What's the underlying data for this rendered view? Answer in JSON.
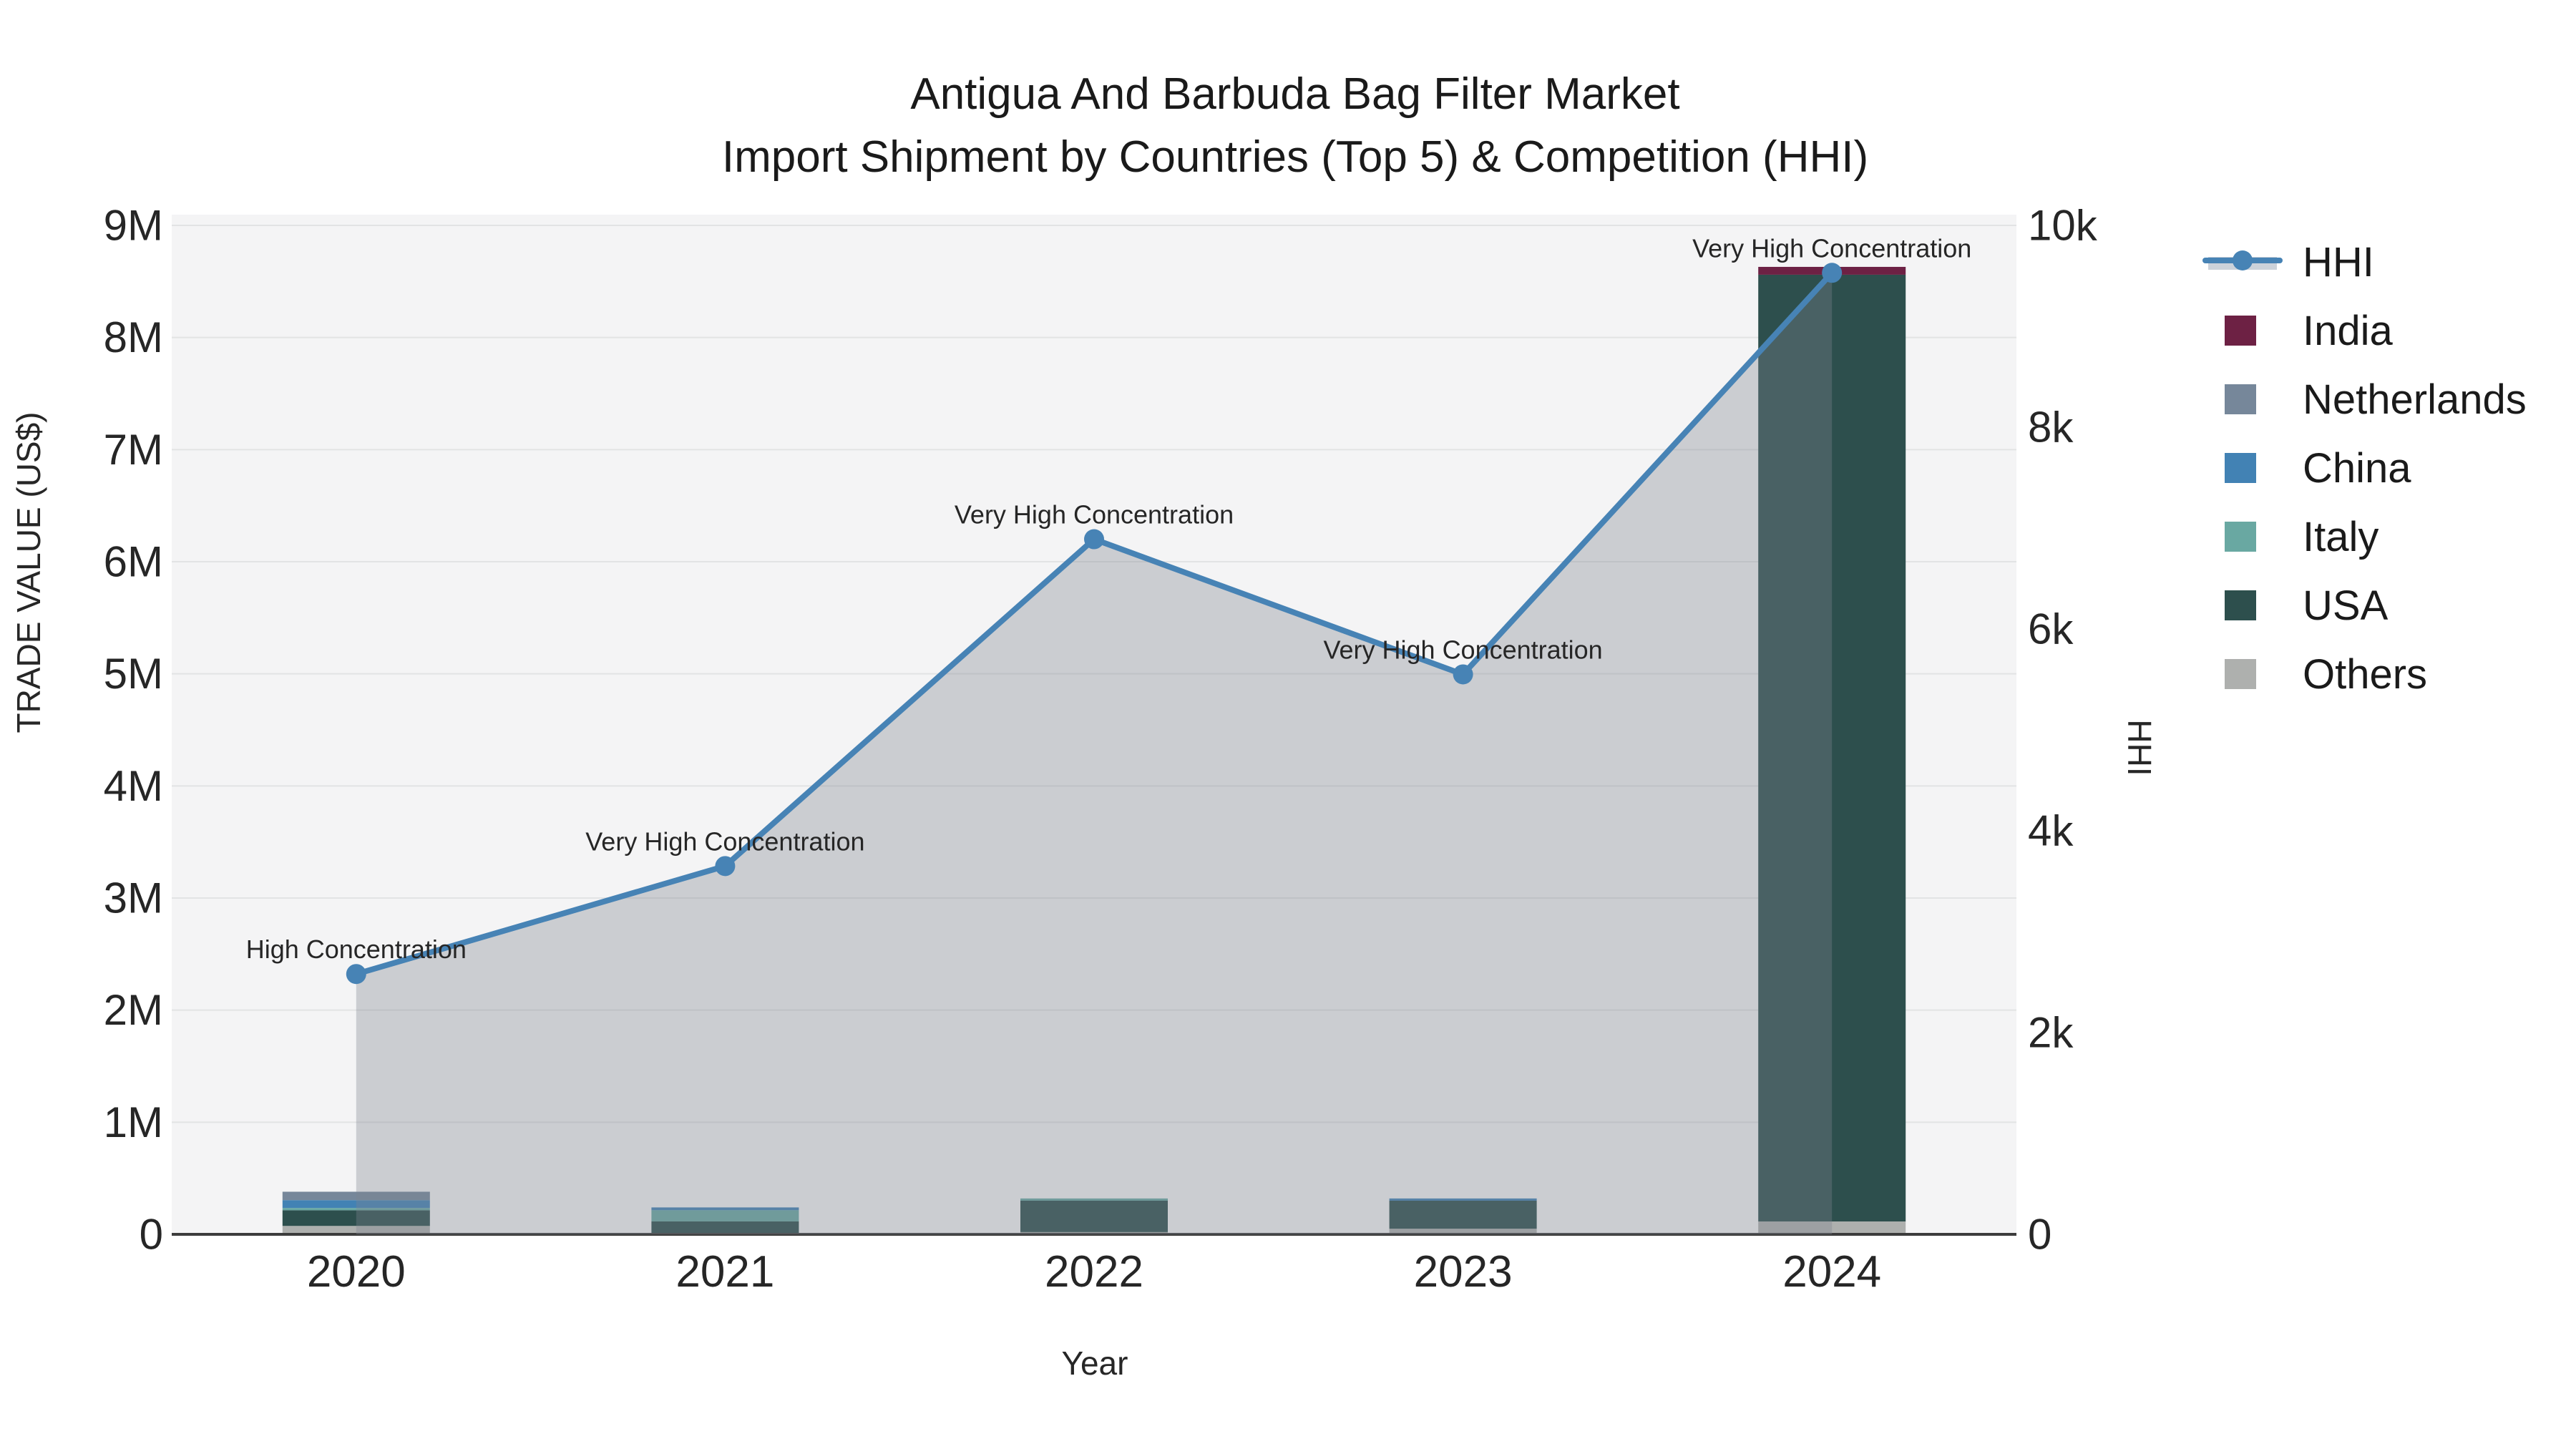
{
  "title": {
    "line1": "Antigua And Barbuda Bag Filter Market",
    "line2": "Import Shipment by Countries (Top 5) & Competition (HHI)"
  },
  "chart_data": {
    "type": "combo: stacked bar (trade value by country) + line with shaded area (HHI)",
    "categories": [
      "2020",
      "2021",
      "2022",
      "2023",
      "2024"
    ],
    "xlabel": "Year",
    "ylabel_left": "TRADE VALUE (US$)",
    "ylabel_right": "HHI",
    "left_axis": {
      "tick_labels": [
        "0",
        "1M",
        "2M",
        "3M",
        "4M",
        "5M",
        "6M",
        "7M",
        "8M",
        "9M"
      ],
      "tick_values": [
        0,
        1000000,
        2000000,
        3000000,
        4000000,
        5000000,
        6000000,
        7000000,
        8000000,
        9000000
      ],
      "range": [
        0,
        9000000
      ],
      "grid": true
    },
    "right_axis": {
      "tick_labels": [
        "0",
        "2k",
        "4k",
        "6k",
        "8k",
        "10k"
      ],
      "tick_values": [
        0,
        2000,
        4000,
        6000,
        8000,
        10000
      ],
      "range": [
        0,
        10000
      ],
      "grid": false
    },
    "bar_series_stack_bottom_to_top": [
      {
        "name": "Others",
        "color": "#aeb0ae",
        "values": [
          75000,
          0,
          20000,
          50000,
          115000
        ]
      },
      {
        "name": "USA",
        "color": "#2d4f4d",
        "values": [
          140000,
          115000,
          280000,
          250000,
          8445000
        ]
      },
      {
        "name": "Italy",
        "color": "#69a8a2",
        "values": [
          20000,
          100000,
          20000,
          0,
          0
        ]
      },
      {
        "name": "China",
        "color": "#4282b4",
        "values": [
          70000,
          25000,
          0,
          20000,
          0
        ]
      },
      {
        "name": "Netherlands",
        "color": "#76879a",
        "values": [
          75000,
          0,
          0,
          0,
          0
        ]
      },
      {
        "name": "India",
        "color": "#6d2144",
        "values": [
          0,
          0,
          0,
          0,
          70000
        ]
      }
    ],
    "line_series": {
      "name": "HHI",
      "color": "#4783b5",
      "area_fill": "rgba(125,132,142,0.35)",
      "values": [
        2580,
        3650,
        6890,
        5550,
        9530
      ]
    },
    "annotations": [
      "High Concentration",
      "Very High Concentration",
      "Very High Concentration",
      "Very High Concentration",
      "Very High Concentration"
    ],
    "legend": {
      "position": "right",
      "band_color": "#ccd2da",
      "items": [
        "HHI",
        "India",
        "Netherlands",
        "China",
        "Italy",
        "USA",
        "Others"
      ]
    },
    "plot_bg": "#f4f4f5",
    "figure_bg": "#ffffff",
    "grid_color": "#e2e3e4",
    "spine_color": "#3c3c3c"
  }
}
